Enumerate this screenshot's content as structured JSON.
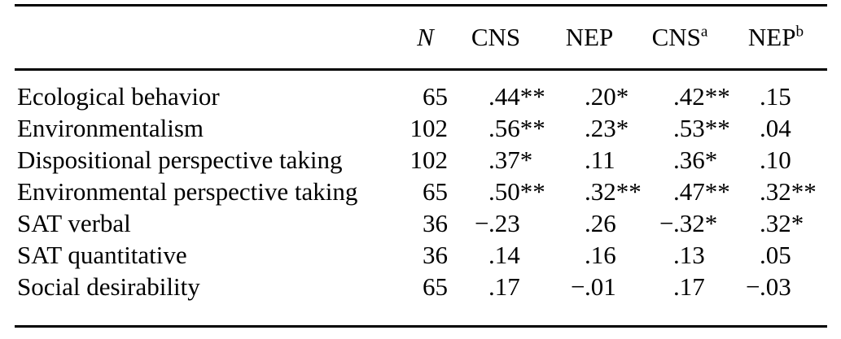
{
  "table": {
    "columns": [
      {
        "key": "label",
        "label": "",
        "sup": ""
      },
      {
        "key": "n",
        "label": "N",
        "sup": "",
        "italic": true
      },
      {
        "key": "cns",
        "label": "CNS",
        "sup": ""
      },
      {
        "key": "nep",
        "label": "NEP",
        "sup": ""
      },
      {
        "key": "cns_a",
        "label": "CNS",
        "sup": "a"
      },
      {
        "key": "nep_b",
        "label": "NEP",
        "sup": "b"
      }
    ],
    "rows": [
      {
        "label": "Ecological behavior",
        "n": "65",
        "values": [
          ".44**",
          ".20*",
          ".42**",
          ".15"
        ]
      },
      {
        "label": "Environmentalism",
        "n": "102",
        "values": [
          ".56**",
          ".23*",
          ".53**",
          ".04"
        ]
      },
      {
        "label": "Dispositional perspective taking",
        "n": "102",
        "values": [
          ".37*",
          ".11",
          ".36*",
          ".10"
        ]
      },
      {
        "label": "Environmental perspective taking",
        "n": "65",
        "values": [
          ".50**",
          ".32**",
          ".47**",
          ".32**"
        ]
      },
      {
        "label": "SAT verbal",
        "n": "36",
        "values": [
          "−.23",
          ".26",
          "−.32*",
          ".32*"
        ]
      },
      {
        "label": "SAT quantitative",
        "n": "36",
        "values": [
          ".14",
          ".16",
          ".13",
          ".05"
        ]
      },
      {
        "label": "Social desirability",
        "n": "65",
        "values": [
          ".17",
          "−.01",
          ".17",
          "−.03"
        ]
      }
    ]
  },
  "colors": {
    "text": "#000000",
    "background": "#ffffff",
    "rule": "#000000"
  },
  "chart_data": {
    "type": "table",
    "columns": [
      "",
      "N",
      "CNS",
      "NEP",
      "CNS^a",
      "NEP^b"
    ],
    "rows": [
      [
        "Ecological behavior",
        "65",
        ".44**",
        ".20*",
        ".42**",
        ".15"
      ],
      [
        "Environmentalism",
        "102",
        ".56**",
        ".23*",
        ".53**",
        ".04"
      ],
      [
        "Dispositional perspective taking",
        "102",
        ".37*",
        ".11",
        ".36*",
        ".10"
      ],
      [
        "Environmental perspective taking",
        "65",
        ".50**",
        ".32**",
        ".47**",
        ".32**"
      ],
      [
        "SAT verbal",
        "36",
        "−.23",
        ".26",
        "−.32*",
        ".32*"
      ],
      [
        "SAT quantitative",
        "36",
        ".14",
        ".16",
        ".13",
        ".05"
      ],
      [
        "Social desirability",
        "65",
        ".17",
        "−.01",
        ".17",
        "−.03"
      ]
    ]
  }
}
